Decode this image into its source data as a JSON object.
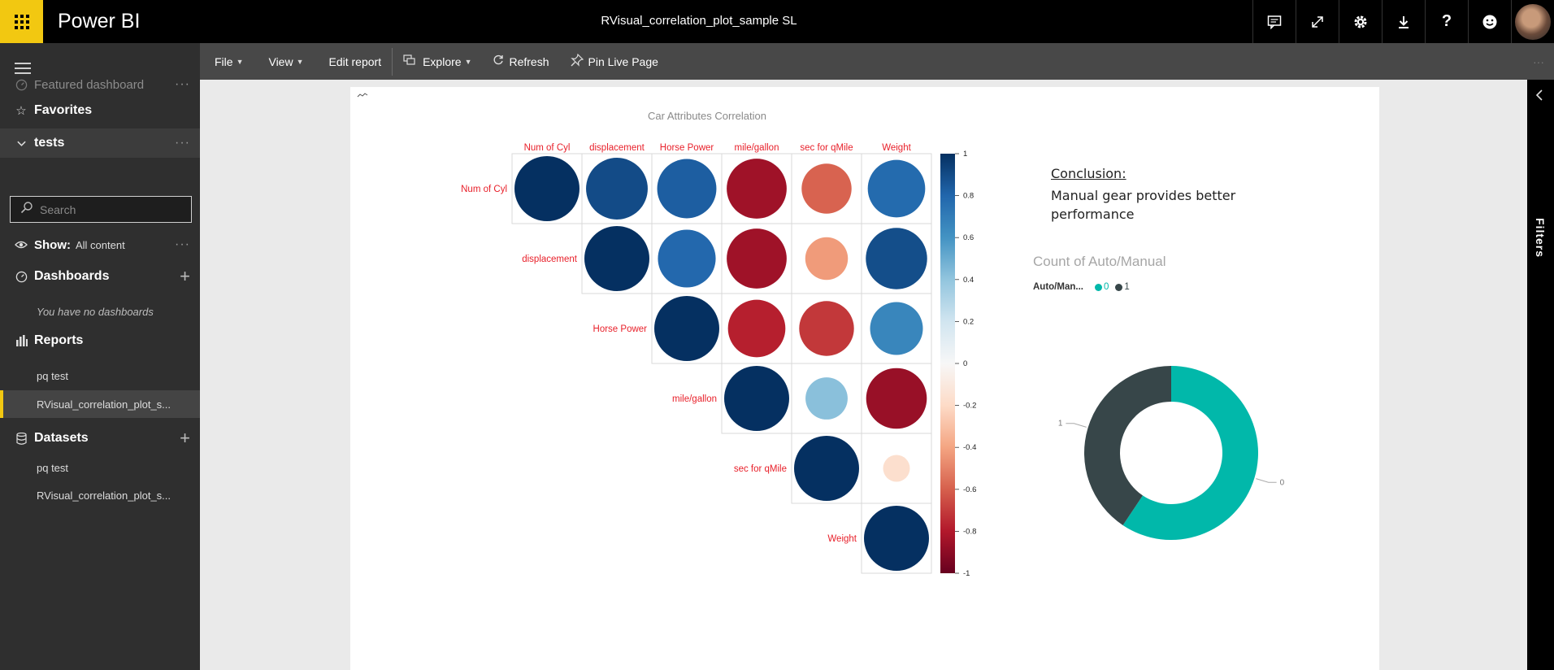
{
  "app": {
    "name": "Power BI",
    "report_title": "RVisual_correlation_plot_sample SL"
  },
  "topbar_icons": [
    "comment-icon",
    "fullscreen-icon",
    "settings-icon",
    "download-icon",
    "help-icon",
    "feedback-icon"
  ],
  "nav": {
    "featured": "Featured dashboard",
    "favorites": "Favorites",
    "workspace": "tests",
    "search_placeholder": "Search",
    "show_label": "Show:",
    "show_value": "All content",
    "dashboards": "Dashboards",
    "no_dashboards": "You have no dashboards",
    "reports": "Reports",
    "report_items": [
      "pq test",
      "RVisual_correlation_plot_s..."
    ],
    "datasets": "Datasets",
    "dataset_items": [
      "pq test",
      "RVisual_correlation_plot_s..."
    ]
  },
  "toolbar": {
    "file": "File",
    "view": "View",
    "edit": "Edit report",
    "explore": "Explore",
    "refresh": "Refresh",
    "pin": "Pin Live Page"
  },
  "filters": {
    "label": "Filters"
  },
  "conclusion": {
    "heading": "Conclusion:",
    "body": "Manual gear provides better performance"
  },
  "chart_data": [
    {
      "type": "heatmap",
      "title": "Car Attributes Correlation",
      "variables": [
        "Num of Cyl",
        "displacement",
        "Horse Power",
        "mile/gallon",
        "sec for qMile",
        "Weight"
      ],
      "matrix_upper": [
        [
          1.0,
          0.9,
          0.83,
          -0.85,
          -0.59,
          0.78
        ],
        [
          null,
          1.0,
          0.79,
          -0.85,
          -0.43,
          0.89
        ],
        [
          null,
          null,
          1.0,
          -0.78,
          -0.71,
          0.66
        ],
        [
          null,
          null,
          null,
          1.0,
          0.42,
          -0.87
        ],
        [
          null,
          null,
          null,
          null,
          1.0,
          -0.17
        ],
        [
          null,
          null,
          null,
          null,
          null,
          1.0
        ]
      ],
      "colorbar_ticks": [
        "1",
        "0.8",
        "0.6",
        "0.4",
        "0.2",
        "0",
        "-0.2",
        "-0.4",
        "-0.6",
        "-0.8",
        "-1"
      ],
      "colors": {
        "positive": "#053061",
        "neutral": "#f7f7f7",
        "negative": "#67001f"
      }
    },
    {
      "type": "pie",
      "title": "Count of Auto/Manual",
      "legend_title": "Auto/Man...",
      "legend_position": "top-left",
      "donut": true,
      "categories": [
        "0",
        "1"
      ],
      "values": [
        19,
        13
      ],
      "colors": [
        "#01b8aa",
        "#374649"
      ]
    }
  ]
}
